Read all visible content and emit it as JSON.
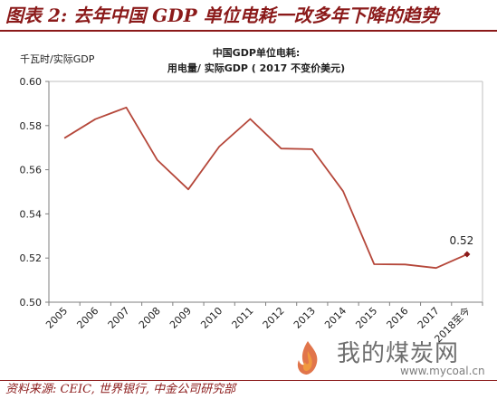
{
  "figure": {
    "title": "图表 2: 去年中国 GDP 单位电耗一改多年下降的趋势",
    "source": "资料来源: CEIC, 世界银行, 中金公司研究部"
  },
  "watermark": {
    "text": "我的煤炭网",
    "url": "www.mycoal.cn"
  },
  "chart_data": {
    "type": "line",
    "title": "中国GDP单位电耗:",
    "subtitle": "用电量/ 实际GDP ( 2017 不变价美元)",
    "ylabel": "千瓦时/实际GDP",
    "xlabel": "",
    "categories": [
      "2005",
      "2006",
      "2007",
      "2008",
      "2009",
      "2010",
      "2011",
      "2012",
      "2013",
      "2014",
      "2015",
      "2016",
      "2017",
      "2018至今"
    ],
    "ylim": [
      0.5,
      0.6
    ],
    "yticks": [
      "0.50",
      "0.52",
      "0.54",
      "0.56",
      "0.58",
      "0.60"
    ],
    "series": [
      {
        "values": [
          0.5743,
          0.5829,
          0.5882,
          0.5644,
          0.5511,
          0.5705,
          0.583,
          0.5696,
          0.5693,
          0.5503,
          0.5172,
          0.5171,
          0.5155,
          0.5217
        ],
        "color": "#b5473a"
      }
    ],
    "annotation": {
      "label": "0.52",
      "category": "2018至今"
    },
    "grid": false,
    "legend": "none"
  }
}
